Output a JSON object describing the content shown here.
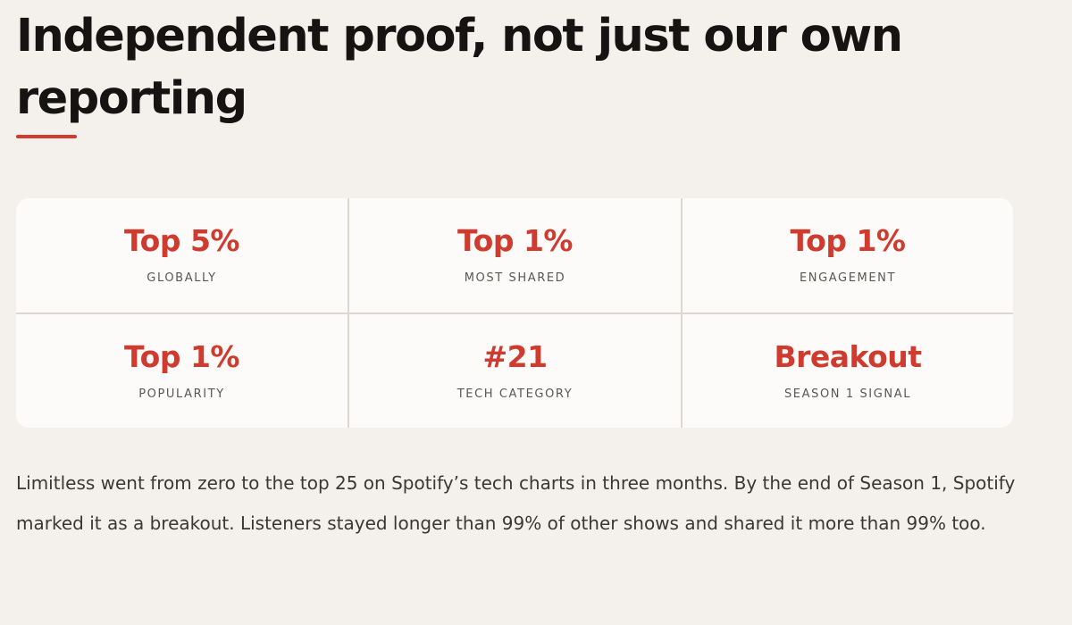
{
  "heading": "Independent proof, not just our own reporting",
  "colors": {
    "accent": "#d23b2f",
    "background": "#f4f1ed",
    "card": "#fcfbf9"
  },
  "stats": [
    {
      "value": "Top 5%",
      "label": "GLOBALLY"
    },
    {
      "value": "Top 1%",
      "label": "MOST SHARED"
    },
    {
      "value": "Top 1%",
      "label": "ENGAGEMENT"
    },
    {
      "value": "Top 1%",
      "label": "POPULARITY"
    },
    {
      "value": "#21",
      "label": "TECH CATEGORY"
    },
    {
      "value": "Breakout",
      "label": "SEASON 1 SIGNAL"
    }
  ],
  "body": "Limitless went from zero to the top 25 on Spotify’s tech charts in three months. By the end of Season 1, Spotify marked it as a breakout. Listeners stayed longer than 99% of other shows and shared it more than 99% too."
}
